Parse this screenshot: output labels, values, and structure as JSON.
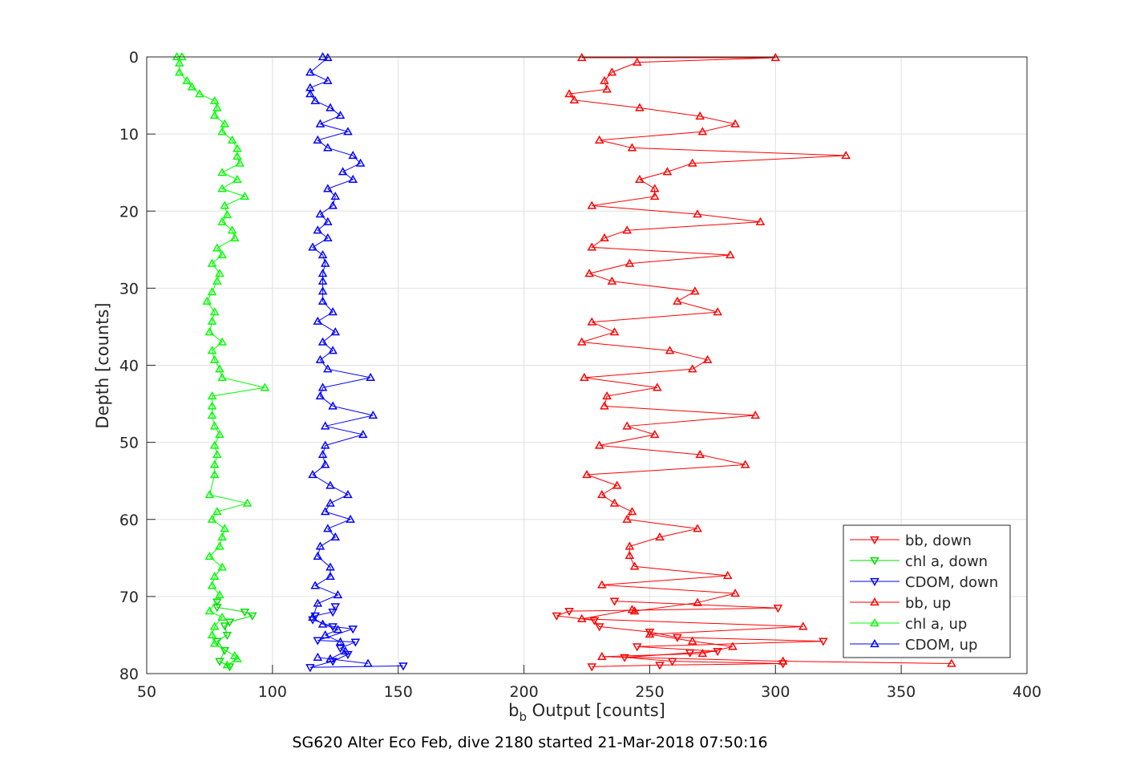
{
  "chart_data": {
    "type": "line",
    "xlabel_base": "b",
    "xlabel_sub": "b",
    "xlabel_rest": " Output [counts]",
    "ylabel": "Depth [counts]",
    "caption": "SG620 Alter Eco Feb, dive 2180 started 21-Mar-2018 07:50:16",
    "xlim": [
      50,
      400
    ],
    "ylim": [
      0,
      80
    ],
    "y_reversed": true,
    "xticks": [
      50,
      100,
      150,
      200,
      250,
      300,
      350,
      400
    ],
    "yticks": [
      0,
      10,
      20,
      30,
      40,
      50,
      60,
      70,
      80
    ],
    "grid": true,
    "legend_position": "bottom-right",
    "series": [
      {
        "name": "bb, down",
        "color": "#ff0000",
        "marker": "down",
        "points": [
          [
            236,
            70.6
          ],
          [
            301,
            71.5
          ],
          [
            218,
            71.9
          ],
          [
            213,
            72.5
          ],
          [
            228,
            73.1
          ],
          [
            230,
            73.9
          ],
          [
            250,
            74.6
          ],
          [
            261,
            75.3
          ],
          [
            319,
            75.8
          ],
          [
            245,
            76.5
          ],
          [
            277,
            77.1
          ],
          [
            266,
            77.3
          ],
          [
            240,
            77.9
          ],
          [
            259,
            78.4
          ],
          [
            303,
            78.7
          ],
          [
            254,
            78.9
          ],
          [
            227,
            79.1
          ]
        ]
      },
      {
        "name": "chl a, down",
        "color": "#00dd00",
        "marker": "down",
        "points": [
          [
            78,
            70.7
          ],
          [
            78,
            71.4
          ],
          [
            89,
            72.0
          ],
          [
            92,
            72.5
          ],
          [
            83,
            73.3
          ],
          [
            81,
            73.8
          ],
          [
            82,
            75.0
          ],
          [
            78,
            75.8
          ],
          [
            81,
            77.0
          ],
          [
            79,
            78.4
          ],
          [
            83,
            79.1
          ]
        ]
      },
      {
        "name": "CDOM, down",
        "color": "#0000ff",
        "marker": "down",
        "points": [
          [
            125,
            71.3
          ],
          [
            124,
            72.0
          ],
          [
            117,
            72.5
          ],
          [
            116,
            73.0
          ],
          [
            124,
            73.9
          ],
          [
            132,
            74.2
          ],
          [
            118,
            75.7
          ],
          [
            133,
            75.9
          ],
          [
            127,
            76.7
          ],
          [
            130,
            77.5
          ],
          [
            124,
            78.4
          ],
          [
            115,
            79.2
          ],
          [
            152,
            79.0
          ]
        ]
      },
      {
        "name": "bb, up",
        "color": "#ff0000",
        "marker": "up",
        "points": [
          [
            370,
            78.7
          ],
          [
            303,
            78.4
          ],
          [
            231,
            77.8
          ],
          [
            271,
            77.4
          ],
          [
            283,
            76.5
          ],
          [
            267,
            75.8
          ],
          [
            250,
            74.9
          ],
          [
            311,
            73.9
          ],
          [
            223,
            72.9
          ],
          [
            243,
            71.7
          ],
          [
            244,
            71.9
          ],
          [
            269,
            70.8
          ],
          [
            284,
            69.6
          ],
          [
            231,
            68.5
          ],
          [
            281,
            67.3
          ],
          [
            244,
            66.1
          ],
          [
            242,
            64.7
          ],
          [
            242,
            63.5
          ],
          [
            254,
            62.3
          ],
          [
            269,
            61.2
          ],
          [
            241,
            60.0
          ],
          [
            243,
            59.0
          ],
          [
            236,
            57.9
          ],
          [
            231,
            56.8
          ],
          [
            237,
            55.6
          ],
          [
            225,
            54.2
          ],
          [
            288,
            52.9
          ],
          [
            270,
            51.6
          ],
          [
            230,
            50.4
          ],
          [
            252,
            49.0
          ],
          [
            241,
            47.9
          ],
          [
            292,
            46.5
          ],
          [
            232,
            45.3
          ],
          [
            233,
            44.0
          ],
          [
            253,
            42.9
          ],
          [
            224,
            41.6
          ],
          [
            267,
            40.5
          ],
          [
            273,
            39.3
          ],
          [
            258,
            38.1
          ],
          [
            223,
            37.0
          ],
          [
            236,
            35.7
          ],
          [
            227,
            34.4
          ],
          [
            277,
            33.1
          ],
          [
            261,
            31.7
          ],
          [
            268,
            30.4
          ],
          [
            235,
            29.1
          ],
          [
            226,
            28.1
          ],
          [
            242,
            26.8
          ],
          [
            282,
            25.7
          ],
          [
            227,
            24.7
          ],
          [
            232,
            23.5
          ],
          [
            241,
            22.5
          ],
          [
            294,
            21.4
          ],
          [
            269,
            20.4
          ],
          [
            227,
            19.3
          ],
          [
            252,
            18.1
          ],
          [
            252,
            17.1
          ],
          [
            246,
            15.9
          ],
          [
            257,
            14.9
          ],
          [
            267,
            13.8
          ],
          [
            328,
            12.8
          ],
          [
            243,
            11.8
          ],
          [
            230,
            10.8
          ],
          [
            271,
            9.7
          ],
          [
            284,
            8.7
          ],
          [
            270,
            7.7
          ],
          [
            246,
            6.6
          ],
          [
            220,
            5.6
          ],
          [
            218,
            4.8
          ],
          [
            233,
            4.2
          ],
          [
            232,
            3.1
          ],
          [
            235,
            2.0
          ],
          [
            245,
            0.7
          ],
          [
            300,
            0.1
          ],
          [
            223,
            0.1
          ]
        ]
      },
      {
        "name": "chl a, up",
        "color": "#00ff00",
        "marker": "up",
        "points": [
          [
            82,
            78.9
          ],
          [
            86,
            78.1
          ],
          [
            85,
            77.7
          ],
          [
            77,
            76.1
          ],
          [
            76,
            75.0
          ],
          [
            77,
            73.9
          ],
          [
            80,
            72.7
          ],
          [
            75,
            71.9
          ],
          [
            79,
            69.8
          ],
          [
            76,
            68.6
          ],
          [
            77,
            67.4
          ],
          [
            80,
            66.2
          ],
          [
            75,
            64.8
          ],
          [
            79,
            63.5
          ],
          [
            80,
            62.3
          ],
          [
            81,
            61.2
          ],
          [
            76,
            60.0
          ],
          [
            78,
            59.0
          ],
          [
            90,
            57.9
          ],
          [
            75,
            56.8
          ],
          [
            77,
            54.2
          ],
          [
            77,
            52.9
          ],
          [
            78,
            51.6
          ],
          [
            77,
            50.4
          ],
          [
            79,
            49.0
          ],
          [
            77,
            47.9
          ],
          [
            76,
            46.5
          ],
          [
            76,
            45.3
          ],
          [
            76,
            44.0
          ],
          [
            97,
            42.9
          ],
          [
            80,
            41.6
          ],
          [
            79,
            40.5
          ],
          [
            77,
            39.3
          ],
          [
            76,
            38.1
          ],
          [
            80,
            37.0
          ],
          [
            75,
            35.7
          ],
          [
            76,
            34.3
          ],
          [
            77,
            33.1
          ],
          [
            74,
            31.7
          ],
          [
            76,
            30.5
          ],
          [
            78,
            29.1
          ],
          [
            79,
            28.1
          ],
          [
            76,
            26.8
          ],
          [
            80,
            25.7
          ],
          [
            78,
            24.8
          ],
          [
            85,
            23.5
          ],
          [
            84,
            22.5
          ],
          [
            80,
            21.4
          ],
          [
            82,
            20.5
          ],
          [
            81,
            19.3
          ],
          [
            89,
            18.1
          ],
          [
            80,
            17.1
          ],
          [
            86,
            15.9
          ],
          [
            80,
            15.0
          ],
          [
            87,
            13.8
          ],
          [
            86,
            12.9
          ],
          [
            86,
            11.9
          ],
          [
            84,
            10.8
          ],
          [
            80,
            9.7
          ],
          [
            81,
            8.7
          ],
          [
            77,
            7.6
          ],
          [
            78,
            6.6
          ],
          [
            77,
            5.7
          ],
          [
            71,
            4.8
          ],
          [
            68,
            3.9
          ],
          [
            66,
            3.1
          ],
          [
            63,
            2.0
          ],
          [
            63,
            0.8
          ],
          [
            62,
            0.0
          ],
          [
            64,
            0.0
          ]
        ]
      },
      {
        "name": "CDOM, up",
        "color": "#0000ff",
        "marker": "up",
        "points": [
          [
            138,
            78.7
          ],
          [
            118,
            77.9
          ],
          [
            123,
            78.1
          ],
          [
            129,
            77.1
          ],
          [
            127,
            75.9
          ],
          [
            121,
            75.0
          ],
          [
            126,
            74.3
          ],
          [
            120,
            73.6
          ],
          [
            116,
            72.7
          ],
          [
            118,
            70.9
          ],
          [
            126,
            69.8
          ],
          [
            117,
            68.6
          ],
          [
            123,
            67.4
          ],
          [
            123,
            66.2
          ],
          [
            118,
            64.8
          ],
          [
            119,
            63.5
          ],
          [
            125,
            62.3
          ],
          [
            122,
            61.2
          ],
          [
            131,
            60.0
          ],
          [
            121,
            59.0
          ],
          [
            123,
            57.9
          ],
          [
            130,
            56.8
          ],
          [
            123,
            55.6
          ],
          [
            116,
            54.2
          ],
          [
            121,
            52.9
          ],
          [
            120,
            51.6
          ],
          [
            121,
            50.4
          ],
          [
            136,
            49.0
          ],
          [
            121,
            47.9
          ],
          [
            140,
            46.5
          ],
          [
            124,
            45.3
          ],
          [
            119,
            44.0
          ],
          [
            120,
            42.9
          ],
          [
            139,
            41.6
          ],
          [
            122,
            40.5
          ],
          [
            119,
            39.3
          ],
          [
            124,
            38.1
          ],
          [
            120,
            37.0
          ],
          [
            125,
            35.7
          ],
          [
            118,
            34.3
          ],
          [
            124,
            33.1
          ],
          [
            120,
            31.7
          ],
          [
            120,
            30.4
          ],
          [
            120,
            29.1
          ],
          [
            120,
            28.1
          ],
          [
            121,
            26.8
          ],
          [
            120,
            25.7
          ],
          [
            116,
            24.7
          ],
          [
            122,
            23.5
          ],
          [
            118,
            22.5
          ],
          [
            122,
            21.4
          ],
          [
            119,
            20.4
          ],
          [
            124,
            19.3
          ],
          [
            125,
            18.1
          ],
          [
            122,
            17.1
          ],
          [
            132,
            15.9
          ],
          [
            128,
            14.9
          ],
          [
            135,
            13.8
          ],
          [
            132,
            12.8
          ],
          [
            122,
            11.8
          ],
          [
            118,
            10.8
          ],
          [
            130,
            9.7
          ],
          [
            119,
            8.7
          ],
          [
            127,
            7.6
          ],
          [
            123,
            6.6
          ],
          [
            117,
            5.7
          ],
          [
            115,
            4.8
          ],
          [
            115,
            4.0
          ],
          [
            122,
            3.1
          ],
          [
            115,
            2.0
          ],
          [
            122,
            0.1
          ],
          [
            120,
            0.0
          ]
        ]
      }
    ]
  }
}
